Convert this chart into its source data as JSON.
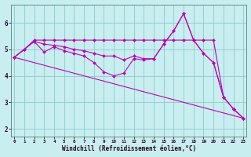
{
  "xlabel": "Windchill (Refroidissement éolien,°C)",
  "bg_color": "#c8eef0",
  "line_color": "#bb00bb",
  "grid_color": "#90c8cc",
  "x_ticks": [
    0,
    1,
    2,
    3,
    4,
    5,
    6,
    7,
    8,
    9,
    10,
    11,
    12,
    13,
    14,
    15,
    16,
    17,
    18,
    19,
    20,
    21,
    22,
    23
  ],
  "y_ticks": [
    2,
    3,
    4,
    5,
    6
  ],
  "ylim": [
    1.7,
    6.7
  ],
  "xlim": [
    -0.3,
    23.3
  ],
  "series": [
    {
      "x": [
        0,
        1,
        2,
        3,
        4,
        5,
        6,
        7,
        8,
        9,
        10,
        11,
        12,
        13,
        14,
        15,
        16,
        17,
        18,
        19,
        20,
        21,
        22,
        23
      ],
      "y": [
        4.7,
        5.0,
        5.3,
        5.2,
        5.15,
        5.1,
        5.0,
        4.95,
        4.85,
        4.75,
        4.75,
        4.6,
        4.75,
        4.65,
        4.65,
        5.2,
        5.7,
        6.35,
        5.35,
        4.85,
        4.5,
        3.2,
        2.75,
        2.4
      ]
    },
    {
      "x": [
        0,
        1,
        2,
        3,
        4,
        5,
        6,
        7,
        8,
        9,
        10,
        11,
        12,
        13,
        14,
        15,
        16,
        17,
        18,
        19,
        20,
        21,
        22,
        23
      ],
      "y": [
        4.7,
        5.0,
        5.3,
        4.9,
        5.1,
        4.95,
        4.85,
        4.75,
        4.5,
        4.15,
        4.0,
        4.1,
        4.65,
        4.6,
        4.65,
        5.2,
        5.7,
        6.35,
        5.35,
        4.85,
        4.5,
        3.2,
        2.75,
        2.4
      ]
    },
    {
      "x": [
        0,
        1,
        2,
        3,
        4,
        5,
        6,
        7,
        8,
        9,
        10,
        11,
        12,
        13,
        14,
        15,
        16,
        17,
        18,
        19,
        20,
        21,
        22,
        23
      ],
      "y": [
        4.7,
        5.0,
        5.35,
        5.35,
        5.35,
        5.35,
        5.35,
        5.35,
        5.35,
        5.35,
        5.35,
        5.35,
        5.35,
        5.35,
        5.35,
        5.35,
        5.35,
        5.35,
        5.35,
        5.35,
        5.35,
        3.2,
        2.75,
        2.4
      ]
    },
    {
      "x": [
        0,
        23
      ],
      "y": [
        4.7,
        2.4
      ],
      "no_marker": true
    }
  ]
}
